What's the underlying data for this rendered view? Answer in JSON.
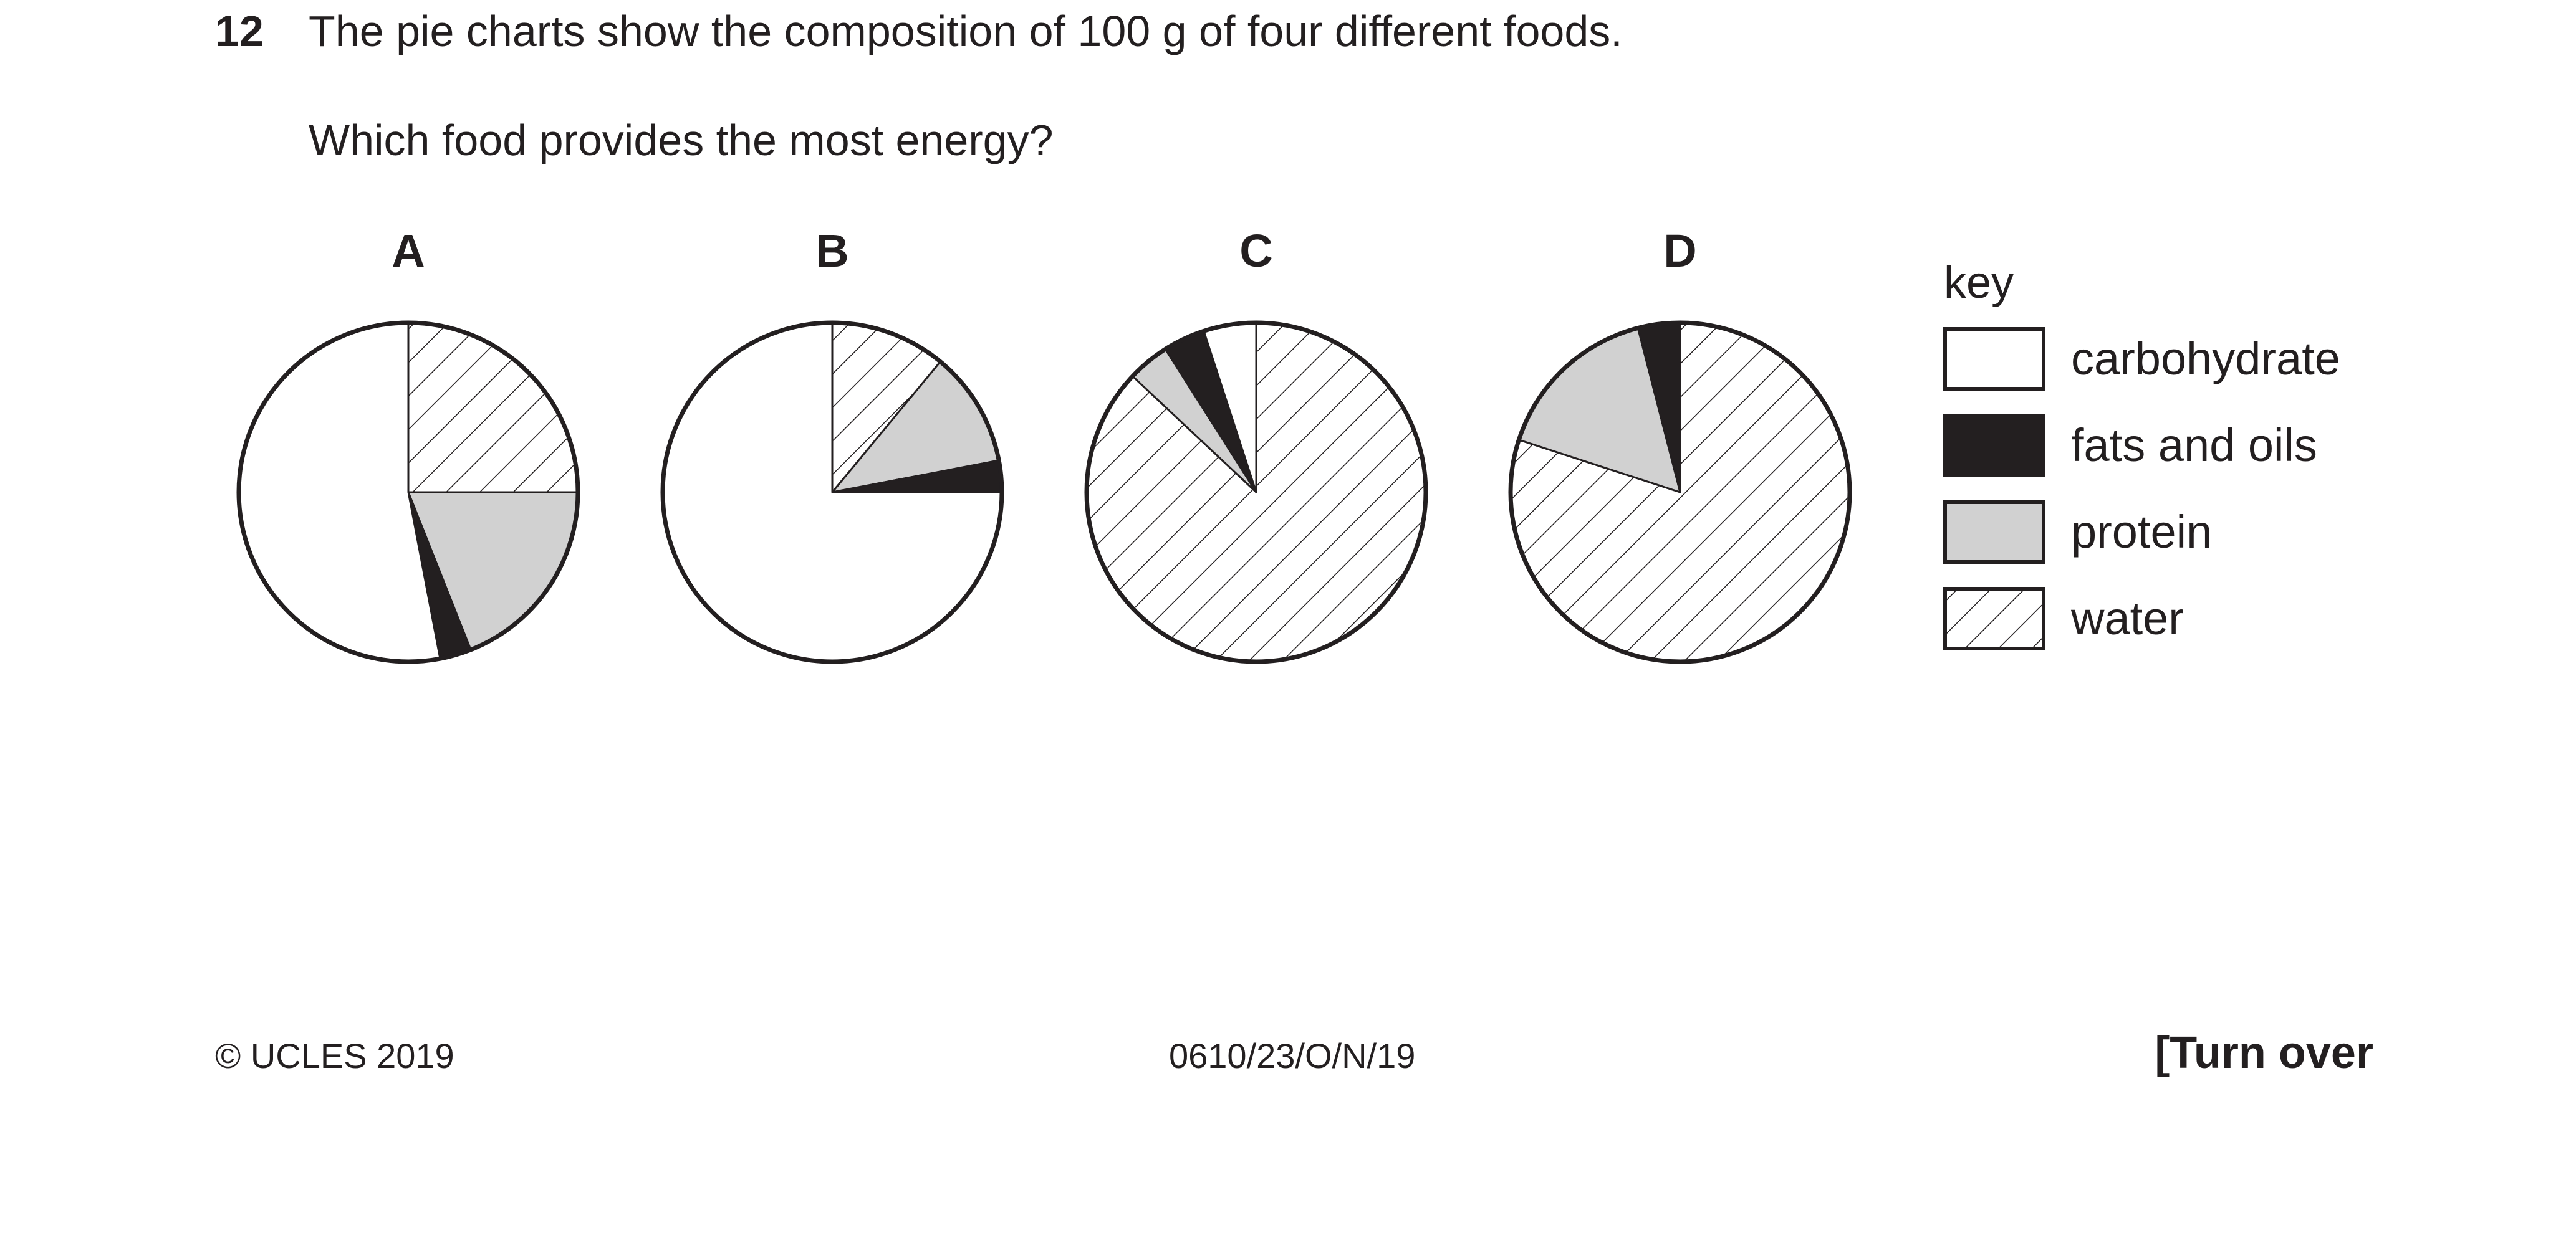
{
  "question": {
    "number": "12",
    "text": "The pie charts show the composition of 100 g of four different foods.",
    "prompt": "Which food provides the most energy?"
  },
  "chart_data": {
    "type": "pie",
    "categories": [
      "carbohydrate",
      "fats and oils",
      "protein",
      "water"
    ],
    "key_title": "key",
    "colors": {
      "carbohydrate": "#ffffff",
      "fats and oils": "#231f20",
      "protein": "#d1d1d1",
      "water": "hatched"
    },
    "charts": [
      {
        "label": "A",
        "slices": [
          {
            "category": "water",
            "value": 25
          },
          {
            "category": "protein",
            "value": 19
          },
          {
            "category": "fats and oils",
            "value": 3
          },
          {
            "category": "carbohydrate",
            "value": 53
          }
        ]
      },
      {
        "label": "B",
        "slices": [
          {
            "category": "water",
            "value": 11
          },
          {
            "category": "protein",
            "value": 11
          },
          {
            "category": "fats and oils",
            "value": 3
          },
          {
            "category": "carbohydrate",
            "value": 75
          }
        ]
      },
      {
        "label": "C",
        "slices": [
          {
            "category": "water",
            "value": 87
          },
          {
            "category": "protein",
            "value": 4
          },
          {
            "category": "fats and oils",
            "value": 4
          },
          {
            "category": "carbohydrate",
            "value": 5
          }
        ]
      },
      {
        "label": "D",
        "slices": [
          {
            "category": "water",
            "value": 80
          },
          {
            "category": "protein",
            "value": 16
          },
          {
            "category": "fats and oils",
            "value": 4
          }
        ]
      }
    ]
  },
  "footer": {
    "copyright": "© UCLES 2019",
    "code": "0610/23/O/N/19",
    "turn_over": "[Turn over"
  }
}
